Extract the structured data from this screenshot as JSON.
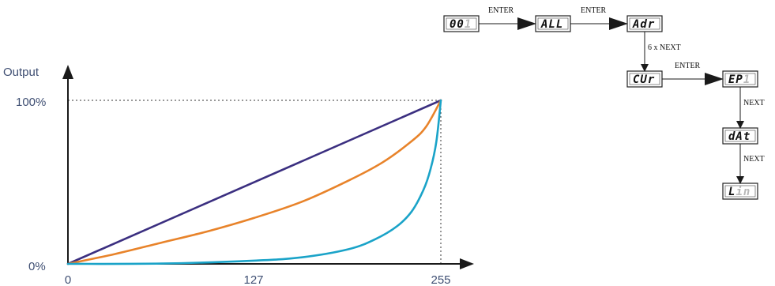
{
  "chart_data": {
    "type": "line",
    "ylabel": "Output",
    "x_ticks": [
      {
        "value": 0,
        "label": "0"
      },
      {
        "value": 127,
        "label": "127"
      },
      {
        "value": 255,
        "label": "255"
      }
    ],
    "y_ticks": [
      {
        "value": 0,
        "label": "0%"
      },
      {
        "value": 100,
        "label": "100%"
      }
    ],
    "xlim": [
      0,
      255
    ],
    "ylim": [
      0,
      100
    ],
    "series": [
      {
        "color": "#3b2f80",
        "x": [
          0,
          255
        ],
        "y": [
          0,
          100
        ]
      },
      {
        "color": "#e8832a",
        "x": [
          0,
          32,
          64,
          96,
          127,
          160,
          192,
          215,
          235,
          245,
          255
        ],
        "y": [
          0,
          6,
          13,
          20,
          28,
          38,
          51,
          62,
          75,
          84,
          100
        ]
      },
      {
        "color": "#1aa3c8",
        "x": [
          0,
          64,
          127,
          160,
          192,
          210,
          225,
          235,
          243,
          248,
          252,
          255
        ],
        "y": [
          0,
          0.2,
          2,
          4,
          9,
          15,
          23,
          32,
          45,
          58,
          75,
          100
        ]
      }
    ],
    "reference_lines": [
      {
        "x": 255,
        "y": 100,
        "style": "dotted"
      }
    ],
    "grid": false
  },
  "menu": {
    "displays": [
      {
        "id": "d001",
        "lit": "00",
        "dim": "1"
      },
      {
        "id": "all",
        "lit": "ALL",
        "dim": ""
      },
      {
        "id": "adr",
        "lit": "Adr",
        "dim": ""
      },
      {
        "id": "cur",
        "lit": "CUr",
        "dim": ""
      },
      {
        "id": "ep1",
        "lit": "EP",
        "dim": "1"
      },
      {
        "id": "dat",
        "lit": "dAt",
        "dim": ""
      },
      {
        "id": "lin",
        "lit": "L",
        "dim": "in"
      }
    ],
    "labels": {
      "enter1": "ENTER",
      "enter2": "ENTER",
      "six_next": "6 x NEXT",
      "enter3": "ENTER",
      "next1": "NEXT",
      "next2": "NEXT"
    }
  }
}
